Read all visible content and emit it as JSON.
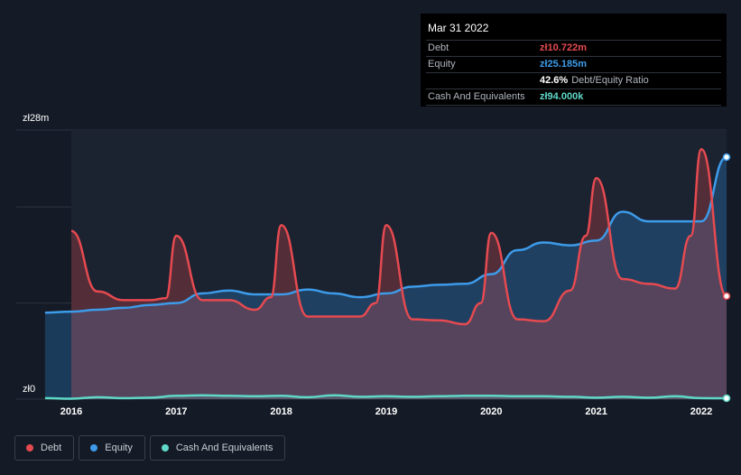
{
  "tooltip": {
    "date": "Mar 31 2022",
    "debt_label": "Debt",
    "debt_value": "zł10.722m",
    "equity_label": "Equity",
    "equity_value": "zł25.185m",
    "ratio_value": "42.6%",
    "ratio_label": "Debt/Equity Ratio",
    "cash_label": "Cash And Equivalents",
    "cash_value": "zł94.000k"
  },
  "y_axis": {
    "top_label": "zł28m",
    "bottom_label": "zł0"
  },
  "legend": [
    {
      "label": "Debt",
      "color": "#e64a50"
    },
    {
      "label": "Equity",
      "color": "#3d9be9"
    },
    {
      "label": "Cash And Equivalents",
      "color": "#5fd8c8"
    }
  ],
  "colors": {
    "background": "#151b26",
    "debt": "#e64a50",
    "equity": "#3d9be9",
    "cash": "#5fd8c8"
  },
  "chart_data": {
    "type": "area",
    "title": "",
    "xlabel": "",
    "ylabel": "",
    "x_ticks": [
      "2016",
      "2017",
      "2018",
      "2019",
      "2020",
      "2021",
      "2022"
    ],
    "ylim": [
      0,
      28
    ],
    "xlim": [
      2015.75,
      2022.25
    ],
    "grid": true,
    "legend_position": "bottom-left",
    "series": [
      {
        "name": "Debt",
        "points": [
          [
            2016.0,
            17.5
          ],
          [
            2016.25,
            11.2
          ],
          [
            2016.5,
            10.3
          ],
          [
            2016.75,
            10.3
          ],
          [
            2016.9,
            10.5
          ],
          [
            2017.0,
            17.0
          ],
          [
            2017.25,
            10.3
          ],
          [
            2017.5,
            10.3
          ],
          [
            2017.75,
            9.3
          ],
          [
            2017.9,
            10.6
          ],
          [
            2018.0,
            18.1
          ],
          [
            2018.25,
            8.6
          ],
          [
            2018.5,
            8.6
          ],
          [
            2018.75,
            8.6
          ],
          [
            2018.9,
            10.0
          ],
          [
            2019.0,
            18.1
          ],
          [
            2019.25,
            8.3
          ],
          [
            2019.5,
            8.2
          ],
          [
            2019.75,
            7.8
          ],
          [
            2019.9,
            10.0
          ],
          [
            2020.0,
            17.3
          ],
          [
            2020.25,
            8.3
          ],
          [
            2020.5,
            8.1
          ],
          [
            2020.75,
            11.3
          ],
          [
            2020.9,
            17.0
          ],
          [
            2021.0,
            23.0
          ],
          [
            2021.25,
            12.5
          ],
          [
            2021.5,
            12.0
          ],
          [
            2021.75,
            11.5
          ],
          [
            2021.9,
            17.0
          ],
          [
            2022.0,
            26.0
          ],
          [
            2022.25,
            10.722
          ]
        ]
      },
      {
        "name": "Equity",
        "points": [
          [
            2015.75,
            9.0
          ],
          [
            2016.0,
            9.1
          ],
          [
            2016.25,
            9.3
          ],
          [
            2016.5,
            9.5
          ],
          [
            2016.75,
            9.8
          ],
          [
            2017.0,
            10.0
          ],
          [
            2017.25,
            11.0
          ],
          [
            2017.5,
            11.3
          ],
          [
            2017.75,
            10.9
          ],
          [
            2018.0,
            10.9
          ],
          [
            2018.25,
            11.4
          ],
          [
            2018.5,
            11.0
          ],
          [
            2018.75,
            10.6
          ],
          [
            2019.0,
            11.0
          ],
          [
            2019.25,
            11.7
          ],
          [
            2019.5,
            11.9
          ],
          [
            2019.75,
            12.0
          ],
          [
            2020.0,
            13.0
          ],
          [
            2020.25,
            15.5
          ],
          [
            2020.5,
            16.3
          ],
          [
            2020.75,
            16.0
          ],
          [
            2021.0,
            16.5
          ],
          [
            2021.25,
            19.5
          ],
          [
            2021.5,
            18.5
          ],
          [
            2021.75,
            18.5
          ],
          [
            2022.0,
            18.5
          ],
          [
            2022.25,
            25.185
          ]
        ]
      },
      {
        "name": "Cash And Equivalents",
        "points": [
          [
            2015.75,
            0.1
          ],
          [
            2016.0,
            0.05
          ],
          [
            2016.25,
            0.2
          ],
          [
            2016.5,
            0.1
          ],
          [
            2016.75,
            0.15
          ],
          [
            2017.0,
            0.35
          ],
          [
            2017.25,
            0.4
          ],
          [
            2017.5,
            0.35
          ],
          [
            2017.75,
            0.3
          ],
          [
            2018.0,
            0.35
          ],
          [
            2018.25,
            0.2
          ],
          [
            2018.5,
            0.4
          ],
          [
            2018.75,
            0.25
          ],
          [
            2019.0,
            0.3
          ],
          [
            2019.25,
            0.25
          ],
          [
            2019.5,
            0.3
          ],
          [
            2019.75,
            0.35
          ],
          [
            2020.0,
            0.35
          ],
          [
            2020.25,
            0.3
          ],
          [
            2020.5,
            0.3
          ],
          [
            2020.75,
            0.25
          ],
          [
            2021.0,
            0.15
          ],
          [
            2021.25,
            0.25
          ],
          [
            2021.5,
            0.15
          ],
          [
            2021.75,
            0.3
          ],
          [
            2022.0,
            0.1
          ],
          [
            2022.25,
            0.094
          ]
        ]
      }
    ]
  }
}
